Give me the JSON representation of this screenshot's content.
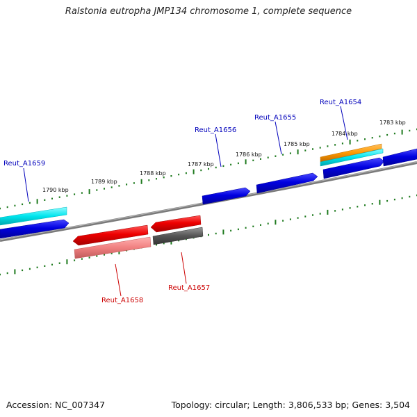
{
  "title": "Ralstonia eutropha JMP134 chromosome 1, complete sequence",
  "footer": {
    "accession": "Accession: NC_007347",
    "summary": "Topology: circular; Length: 3,806,533 bp; Genes: 3,504"
  },
  "scale_labels": [
    "1790 kbp",
    "1789 kbp",
    "1788 kbp",
    "1787 kbp",
    "1786 kbp",
    "1785 kbp",
    "1784 kbp",
    "1783 kbp"
  ],
  "gene_labels": {
    "forward": [
      "Reut_A1659",
      "Reut_A1656",
      "Reut_A1655",
      "Reut_A1654"
    ],
    "reverse": [
      "Reut_A1658",
      "Reut_A1657"
    ]
  },
  "colors": {
    "forward_gene": "#0000e0",
    "reverse_gene": "#ee0000",
    "forward_label": "#0000bb",
    "reverse_label": "#cc0000",
    "cyan_feature": "#00e5ee",
    "orange_feature": "#ff9900",
    "pink_feature": "#f08080",
    "gray_feature": "#555555",
    "backbone": "#7a7a7a",
    "ticks": "#1e7a1e"
  }
}
